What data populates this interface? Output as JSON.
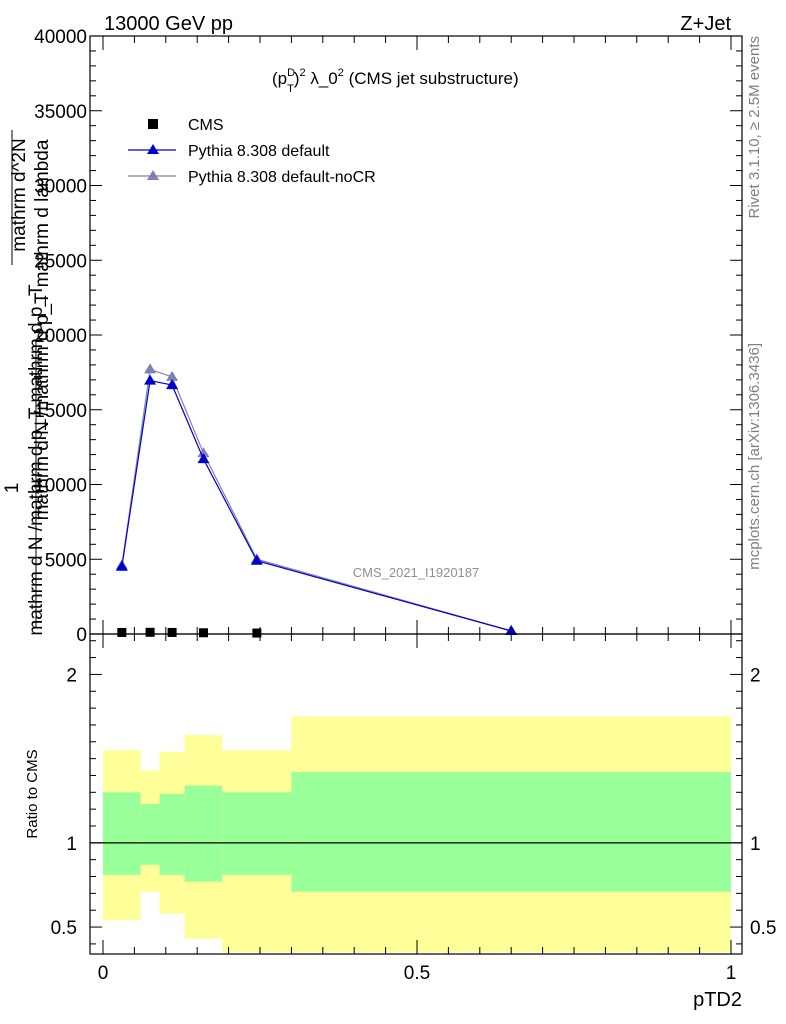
{
  "header": {
    "left": "13000 GeV pp",
    "right": "Z+Jet"
  },
  "side_text": {
    "rivet": "Rivet 3.1.10, ≥ 2.5M events",
    "mcplots": "mcplots.cern.ch [arXiv:1306.3436]"
  },
  "colors": {
    "cms": "#000000",
    "default": "#0000cc",
    "default_nocr": "#8080b8",
    "band_inner": "#99ff99",
    "band_outer": "#ffff99"
  },
  "chart_data": [
    {
      "type": "line",
      "title": "(p_T^D)^2 λ_0^2 (CMS jet substructure)",
      "title_parts": {
        "a": "(p",
        "sup1": "D",
        "sub1": "T",
        "b": ")",
        "sup2": "2",
        "c": " λ_0",
        "sup3": "2",
        "d": " (CMS jet substructure)"
      },
      "ylabel_lines": [
        "mathrm d N /mathrm d p_T mathrm d lambda",
        "mathrm d^2N",
        "1",
        "mathrm d N /mathrm d p_T mathrm d p_T"
      ],
      "watermark": "CMS_2021_I1920187",
      "xlim": [
        0,
        1
      ],
      "ylim": [
        0,
        40000
      ],
      "y_ticks": [
        0,
        5000,
        10000,
        15000,
        20000,
        25000,
        30000,
        35000,
        40000
      ],
      "y_tick_labels": [
        "0",
        "5000",
        "10000",
        "15000",
        "20000",
        "25000",
        "30000",
        "35000",
        "40000"
      ],
      "legend_position": "top-left",
      "series": [
        {
          "name": "CMS",
          "marker": "square",
          "x": [
            0.03,
            0.075,
            0.11,
            0.16,
            0.245
          ],
          "y": [
            70,
            80,
            70,
            50,
            30
          ]
        },
        {
          "name": "Pythia 8.308 default",
          "marker": "triangle",
          "x": [
            0.03,
            0.075,
            0.11,
            0.16,
            0.245,
            0.65
          ],
          "y": [
            4500,
            16950,
            16650,
            11700,
            4900,
            200
          ]
        },
        {
          "name": "Pythia 8.308 default-noCR",
          "marker": "triangle",
          "x": [
            0.03,
            0.075,
            0.11,
            0.16,
            0.245,
            0.65
          ],
          "y": [
            4600,
            17700,
            17200,
            12100,
            5000,
            220
          ]
        }
      ]
    },
    {
      "type": "area",
      "ylabel": "Ratio to CMS",
      "xlabel": "pTD2",
      "xlim": [
        0,
        1
      ],
      "ylim": [
        0.34,
        2.24
      ],
      "x_ticks": [
        0,
        0.5,
        1
      ],
      "x_tick_labels": [
        "0",
        "0.5",
        "1"
      ],
      "y_ticks": [
        0.5,
        1,
        2
      ],
      "y_tick_labels": [
        "0.5",
        "1",
        "2"
      ],
      "reference_line": 1,
      "bins": [
        {
          "x_low": 0.0,
          "x_high": 0.06,
          "inner": [
            0.81,
            1.3
          ],
          "outer": [
            0.54,
            1.55
          ]
        },
        {
          "x_low": 0.06,
          "x_high": 0.09,
          "inner": [
            0.87,
            1.23
          ],
          "outer": [
            0.71,
            1.43
          ]
        },
        {
          "x_low": 0.09,
          "x_high": 0.13,
          "inner": [
            0.81,
            1.29
          ],
          "outer": [
            0.58,
            1.54
          ]
        },
        {
          "x_low": 0.13,
          "x_high": 0.19,
          "inner": [
            0.77,
            1.34
          ],
          "outer": [
            0.43,
            1.64
          ]
        },
        {
          "x_low": 0.19,
          "x_high": 0.3,
          "inner": [
            0.81,
            1.3
          ],
          "outer": [
            0.35,
            1.55
          ]
        },
        {
          "x_low": 0.3,
          "x_high": 1.0,
          "inner": [
            0.71,
            1.42
          ],
          "outer": [
            0.35,
            1.75
          ]
        }
      ]
    }
  ]
}
